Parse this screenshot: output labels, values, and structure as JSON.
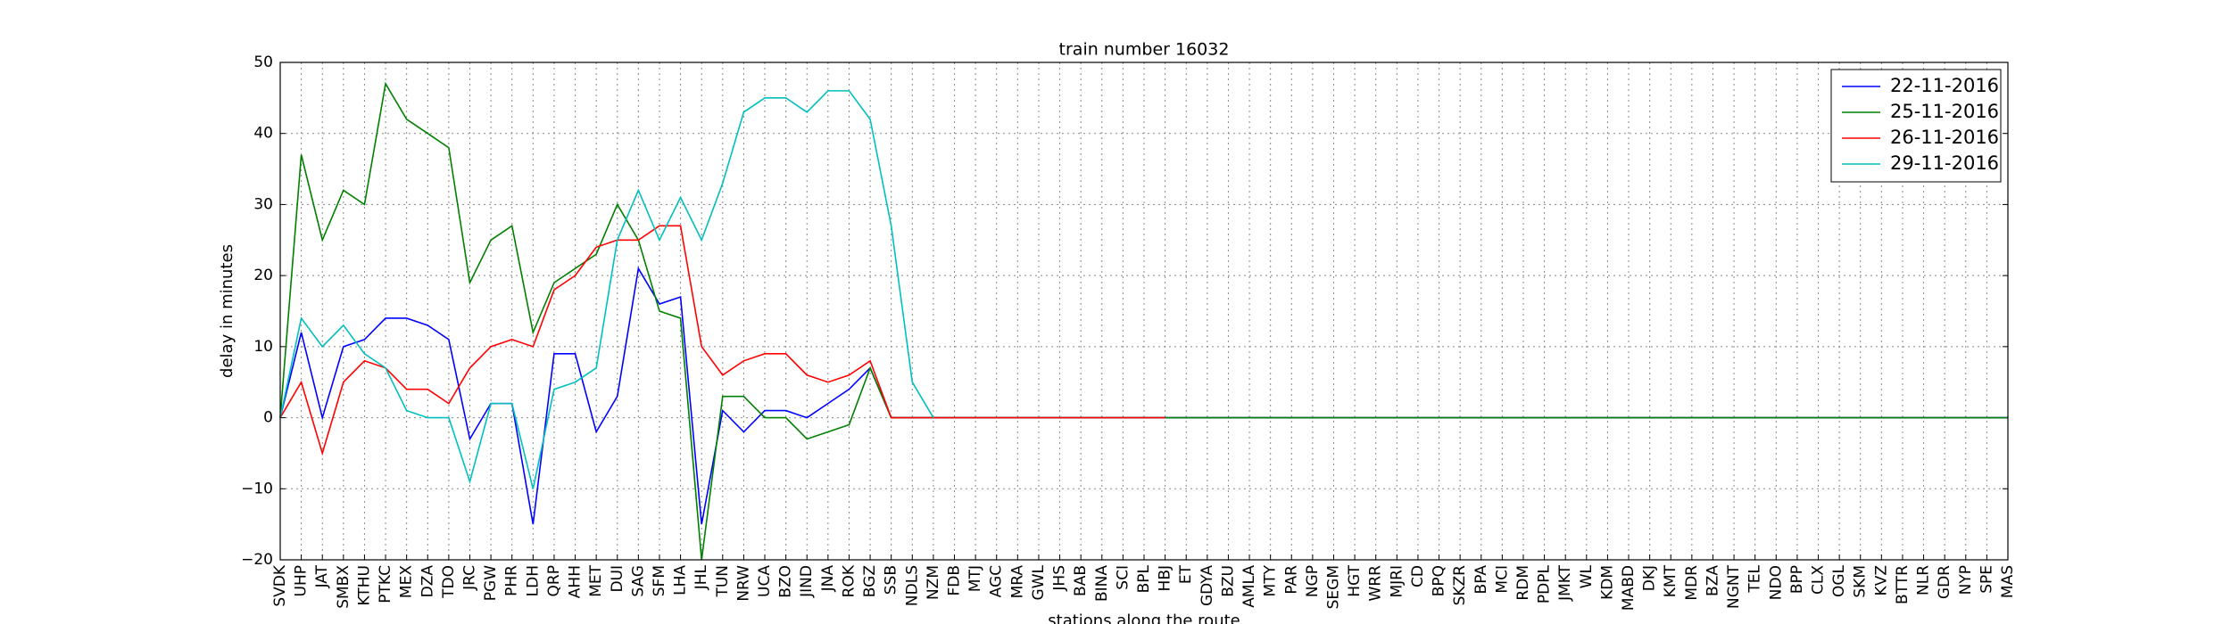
{
  "chart_data": {
    "type": "line",
    "title": "train number 16032",
    "x_label": "stations along the route",
    "y_label": "delay in minutes",
    "categories": [
      "SVDK",
      "UHP",
      "JAT",
      "SMBX",
      "KTHU",
      "PTKC",
      "MEX",
      "DZA",
      "TDO",
      "JRC",
      "PGW",
      "PHR",
      "LDH",
      "QRP",
      "AHH",
      "MET",
      "DUI",
      "SAG",
      "SFM",
      "LHA",
      "JHL",
      "TUN",
      "NRW",
      "UCA",
      "BZO",
      "JIND",
      "JNA",
      "ROK",
      "BGZ",
      "SSB",
      "NDLS",
      "NZM",
      "FDB",
      "MTJ",
      "AGC",
      "MRA",
      "GWL",
      "JHS",
      "BAB",
      "BINA",
      "SCI",
      "BPL",
      "HBJ",
      "ET",
      "GDYA",
      "BZU",
      "AMLA",
      "MTY",
      "PAR",
      "NGP",
      "SEGM",
      "HGT",
      "WRR",
      "MJRI",
      "CD",
      "BPQ",
      "SKZR",
      "BPA",
      "MCI",
      "RDM",
      "PDPL",
      "JMKT",
      "WL",
      "KDM",
      "MABD",
      "DKJ",
      "KMT",
      "MDR",
      "BZA",
      "NGNT",
      "TEL",
      "NDO",
      "BPP",
      "CLX",
      "OGL",
      "SKM",
      "KVZ",
      "BTTR",
      "NLR",
      "GDR",
      "NYP",
      "SPE",
      "MAS"
    ],
    "series": [
      {
        "name": "22-11-2016",
        "color": "#0000ff",
        "values": [
          0,
          12,
          0,
          10,
          11,
          14,
          14,
          13,
          11,
          -3,
          2,
          2,
          -15,
          9,
          9,
          -2,
          3,
          21,
          16,
          17,
          -15,
          1,
          -2,
          1,
          1,
          0,
          2,
          4,
          7,
          0,
          0,
          0,
          0,
          0,
          0,
          0,
          0,
          0,
          0,
          0,
          0,
          0,
          0,
          0,
          0,
          0,
          0,
          0,
          0,
          0,
          0,
          0,
          0,
          0,
          0,
          0,
          0,
          0,
          0,
          0,
          0,
          0,
          0,
          0,
          0,
          0,
          0,
          0,
          0,
          0,
          0,
          0,
          0,
          0,
          0,
          0,
          0,
          0,
          0,
          0,
          0,
          0,
          0
        ]
      },
      {
        "name": "25-11-2016",
        "color": "#008000",
        "values": [
          0,
          37,
          25,
          32,
          30,
          47,
          42,
          40,
          38,
          19,
          25,
          27,
          12,
          19,
          21,
          23,
          30,
          25,
          15,
          14,
          -20,
          3,
          3,
          0,
          0,
          -3,
          -2,
          -1,
          7,
          0,
          0,
          0,
          0,
          0,
          0,
          0,
          0,
          0,
          0,
          0,
          0,
          0,
          0,
          0,
          0,
          0,
          0,
          0,
          0,
          0,
          0,
          0,
          0,
          0,
          0,
          0,
          0,
          0,
          0,
          0,
          0,
          0,
          0,
          0,
          0,
          0,
          0,
          0,
          0,
          0,
          0,
          0,
          0,
          0,
          0,
          0,
          0,
          0,
          0,
          0,
          0,
          0,
          0
        ]
      },
      {
        "name": "26-11-2016",
        "color": "#ff0000",
        "values": [
          0,
          5,
          -5,
          5,
          8,
          7,
          4,
          4,
          2,
          7,
          10,
          11,
          10,
          18,
          20,
          24,
          25,
          25,
          27,
          27,
          10,
          6,
          8,
          9,
          9,
          6,
          5,
          6,
          8,
          0,
          0,
          0,
          0,
          0,
          0,
          0,
          0,
          0,
          0,
          0,
          0,
          0,
          0,
          null,
          null,
          null,
          null,
          null,
          null,
          null,
          null,
          null,
          null,
          null,
          null,
          null,
          null,
          null,
          null,
          null,
          null,
          null,
          null,
          null,
          null,
          null,
          null,
          null,
          null,
          null,
          null,
          null,
          null,
          null,
          null,
          null,
          null,
          null,
          null,
          null,
          null,
          null,
          null
        ]
      },
      {
        "name": "29-11-2016",
        "color": "#00bfbf",
        "values": [
          0,
          14,
          10,
          13,
          9,
          7,
          1,
          0,
          0,
          -9,
          2,
          2,
          -10,
          4,
          5,
          7,
          25,
          32,
          25,
          31,
          25,
          33,
          43,
          45,
          45,
          43,
          46,
          46,
          42,
          27,
          5,
          0,
          null,
          null,
          null,
          null,
          null,
          null,
          null,
          null,
          null,
          null,
          null,
          null,
          null,
          null,
          null,
          null,
          null,
          null,
          null,
          null,
          null,
          null,
          null,
          null,
          null,
          null,
          null,
          null,
          null,
          null,
          null,
          null,
          null,
          null,
          null,
          null,
          null,
          null,
          null,
          null,
          null,
          null,
          null,
          null,
          null,
          null,
          null,
          null,
          null,
          null,
          null
        ]
      }
    ],
    "ylim": [
      -20,
      50
    ],
    "yticks": [
      {
        "value": -20,
        "label": "−20"
      },
      {
        "value": -10,
        "label": "−10"
      },
      0,
      10,
      20,
      30,
      40,
      50
    ],
    "grid": true,
    "legend": "upper-right"
  }
}
